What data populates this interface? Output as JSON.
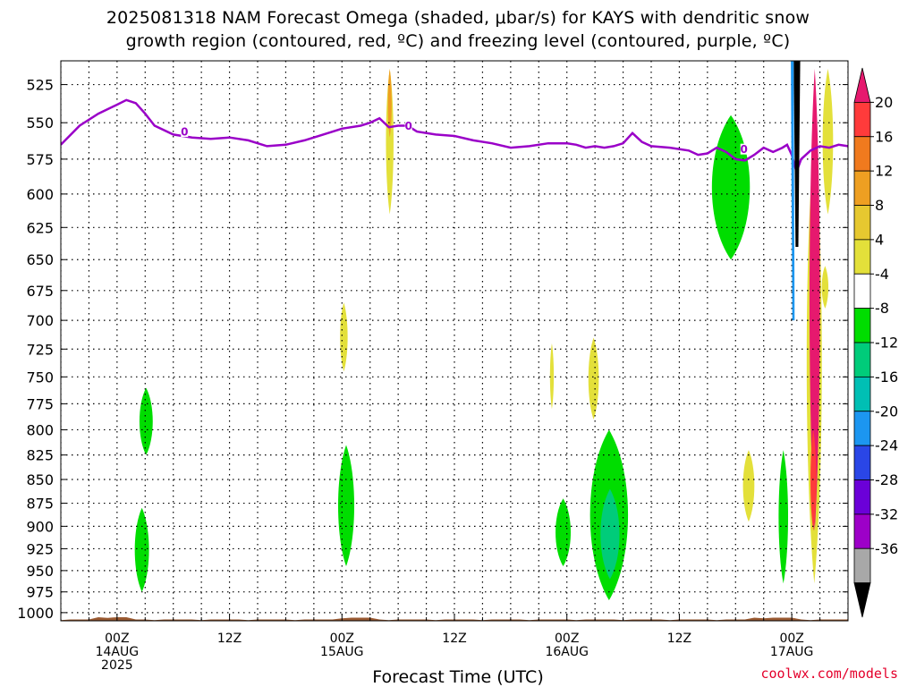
{
  "title_line1": "2025081318 NAM Forecast Omega (shaded, μbar/s) for KAYS with dendritic snow",
  "title_line2": "growth region (contoured, red, ºC) and freezing level (contoured, purple, ºC)",
  "xlabel": "Forecast Time (UTC)",
  "credit": "coolwx.com/models",
  "chart_data": {
    "type": "heatmap",
    "title": "2025081318 NAM Forecast Omega (shaded, μbar/s) for KAYS with dendritic snow growth region (contoured, red, ºC) and freezing level (contoured, purple, ºC)",
    "xlabel": "Forecast Time (UTC)",
    "ylabel": "",
    "y_ticks": [
      525,
      550,
      575,
      600,
      625,
      650,
      675,
      700,
      725,
      750,
      775,
      800,
      825,
      850,
      875,
      900,
      925,
      950,
      975,
      1000
    ],
    "ylim": [
      1010,
      510
    ],
    "x_ticks": [
      {
        "hour": 6,
        "lines": [
          "00Z",
          "14AUG",
          "2025"
        ]
      },
      {
        "hour": 18,
        "lines": [
          "12Z"
        ]
      },
      {
        "hour": 30,
        "lines": [
          "00Z",
          "15AUG"
        ]
      },
      {
        "hour": 42,
        "lines": [
          "12Z"
        ]
      },
      {
        "hour": 54,
        "lines": [
          "00Z",
          "16AUG"
        ]
      },
      {
        "hour": 66,
        "lines": [
          "12Z"
        ]
      },
      {
        "hour": 78,
        "lines": [
          "00Z",
          "17AUG"
        ]
      }
    ],
    "xlim": [
      0,
      84
    ],
    "grid": true,
    "colorbar": {
      "labels": [
        20,
        16,
        12,
        8,
        4,
        -4,
        -8,
        -12,
        -16,
        -20,
        -24,
        -28,
        -32,
        -36
      ],
      "colors": [
        "#e6196e",
        "#ff3b3b",
        "#f07a1e",
        "#ee9f22",
        "#e6c830",
        "#e3e03a",
        "#ffffff",
        "#00dd00",
        "#00cc7a",
        "#00bfb4",
        "#1c96f0",
        "#2a46e6",
        "#6b00d8",
        "#9d00c8",
        "#a8a8a8",
        "#000000"
      ]
    },
    "freezing_level_label": "0",
    "freezing_level": [
      [
        0,
        565
      ],
      [
        2,
        552
      ],
      [
        4,
        544
      ],
      [
        6,
        538
      ],
      [
        7,
        535
      ],
      [
        8,
        537
      ],
      [
        9,
        544
      ],
      [
        10,
        552
      ],
      [
        12,
        558
      ],
      [
        14,
        560
      ],
      [
        16,
        561
      ],
      [
        18,
        560
      ],
      [
        20,
        562
      ],
      [
        22,
        566
      ],
      [
        24,
        565
      ],
      [
        26,
        562
      ],
      [
        28,
        558
      ],
      [
        30,
        554
      ],
      [
        32,
        552
      ],
      [
        33,
        550
      ],
      [
        34,
        547
      ],
      [
        35,
        553
      ],
      [
        36,
        552
      ],
      [
        37,
        552
      ],
      [
        38,
        556
      ],
      [
        40,
        558
      ],
      [
        42,
        559
      ],
      [
        44,
        562
      ],
      [
        46,
        564
      ],
      [
        48,
        567
      ],
      [
        50,
        566
      ],
      [
        52,
        564
      ],
      [
        54,
        564
      ],
      [
        55,
        565
      ],
      [
        56,
        567
      ],
      [
        57,
        566
      ],
      [
        58,
        567
      ],
      [
        59,
        566
      ],
      [
        60,
        564
      ],
      [
        61,
        557
      ],
      [
        62,
        563
      ],
      [
        63,
        566
      ],
      [
        65,
        567
      ],
      [
        67,
        569
      ],
      [
        68,
        572
      ],
      [
        69,
        571
      ],
      [
        70,
        567
      ],
      [
        71,
        570
      ],
      [
        72,
        575
      ],
      [
        73,
        576
      ],
      [
        74,
        572
      ],
      [
        75,
        567
      ],
      [
        76,
        570
      ],
      [
        77,
        567
      ],
      [
        77.5,
        565
      ],
      [
        78,
        572
      ],
      [
        78.5,
        584
      ],
      [
        79,
        575
      ],
      [
        80,
        569
      ],
      [
        81,
        566
      ],
      [
        82,
        567
      ],
      [
        83,
        565
      ],
      [
        84,
        566
      ]
    ],
    "omega_regions": [
      {
        "name": "green",
        "value": -6,
        "x": [
          8.4,
          9.8
        ],
        "p": [
          760,
          825
        ]
      },
      {
        "name": "green",
        "value": -6,
        "x": [
          7.9,
          9.4
        ],
        "p": [
          880,
          975
        ]
      },
      {
        "name": "green",
        "value": -6,
        "x": [
          29.6,
          31.3
        ],
        "p": [
          815,
          945
        ]
      },
      {
        "name": "green",
        "value": -6,
        "x": [
          52.8,
          54.4
        ],
        "p": [
          870,
          945
        ]
      },
      {
        "name": "green",
        "value": -6,
        "x": [
          56.5,
          60.5
        ],
        "p": [
          800,
          985
        ]
      },
      {
        "name": "teal",
        "value": -10,
        "x": [
          57.6,
          59.6
        ],
        "p": [
          860,
          960
        ]
      },
      {
        "name": "green",
        "value": -6,
        "x": [
          69.5,
          73.5
        ],
        "p": [
          545,
          650
        ]
      },
      {
        "name": "green",
        "value": -6,
        "x": [
          76.6,
          77.6
        ],
        "p": [
          820,
          965
        ]
      },
      {
        "name": "yellow",
        "value": 6,
        "x": [
          29.8,
          30.6
        ],
        "p": [
          685,
          745
        ]
      },
      {
        "name": "yellow",
        "value": 6,
        "x": [
          52.2,
          52.6
        ],
        "p": [
          720,
          780
        ]
      },
      {
        "name": "yellow",
        "value": 6,
        "x": [
          56.3,
          57.4
        ],
        "p": [
          715,
          790
        ]
      },
      {
        "name": "yellow",
        "value": 6,
        "x": [
          72.8,
          74.0
        ],
        "p": [
          820,
          895
        ]
      },
      {
        "name": "yellow",
        "value": 6,
        "x": [
          81.2,
          81.9
        ],
        "p": [
          655,
          690
        ]
      },
      {
        "name": "yellow",
        "value": 6,
        "x": [
          34.7,
          35.5
        ],
        "p": [
          515,
          615
        ]
      },
      {
        "name": "orange",
        "value": 10,
        "x": [
          34.9,
          35.3
        ],
        "p": [
          515,
          560
        ]
      },
      {
        "name": "yellow",
        "value": 6,
        "x": [
          79.6,
          81.2
        ],
        "p": [
          560,
          965
        ]
      },
      {
        "name": "magenta",
        "value": 20,
        "x": [
          79.9,
          81.0
        ],
        "p": [
          515,
          905
        ]
      },
      {
        "name": "red",
        "value": 18,
        "x": [
          80.0,
          80.6
        ],
        "p": [
          800,
          905
        ]
      },
      {
        "name": "yellow",
        "value": 6,
        "x": [
          81.3,
          82.4
        ],
        "p": [
          515,
          615
        ]
      }
    ],
    "terrain_pressure": 1005
  }
}
